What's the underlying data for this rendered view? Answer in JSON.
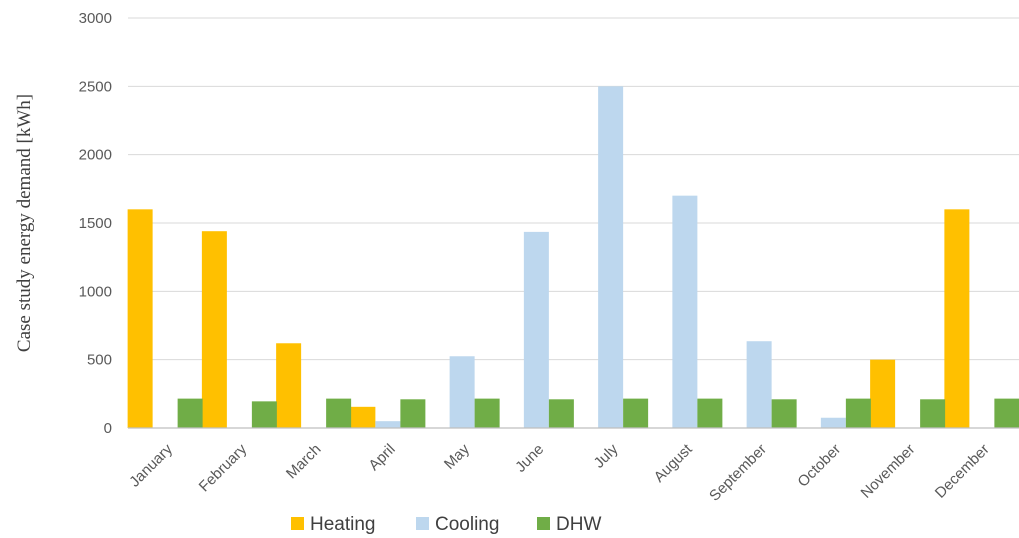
{
  "chart_data": {
    "type": "bar",
    "title": "",
    "xlabel": "",
    "ylabel": "Case study energy demand [kWh]",
    "ylim": [
      0,
      3000
    ],
    "yticks": [
      0,
      500,
      1000,
      1500,
      2000,
      2500,
      3000
    ],
    "grid": true,
    "legend_position": "bottom",
    "categories": [
      "January",
      "February",
      "March",
      "April",
      "May",
      "June",
      "July",
      "August",
      "September",
      "October",
      "November",
      "December"
    ],
    "series": [
      {
        "name": "Heating",
        "color": "#FFC000",
        "values": [
          1600,
          1440,
          620,
          155,
          0,
          0,
          0,
          0,
          0,
          0,
          500,
          1600
        ]
      },
      {
        "name": "Cooling",
        "color": "#BDD7EE",
        "values": [
          0,
          0,
          0,
          50,
          525,
          1435,
          2500,
          1700,
          635,
          75,
          0,
          0
        ]
      },
      {
        "name": "DHW",
        "color": "#70AD47",
        "values": [
          215,
          195,
          215,
          210,
          215,
          210,
          215,
          215,
          210,
          215,
          210,
          215
        ]
      }
    ]
  }
}
